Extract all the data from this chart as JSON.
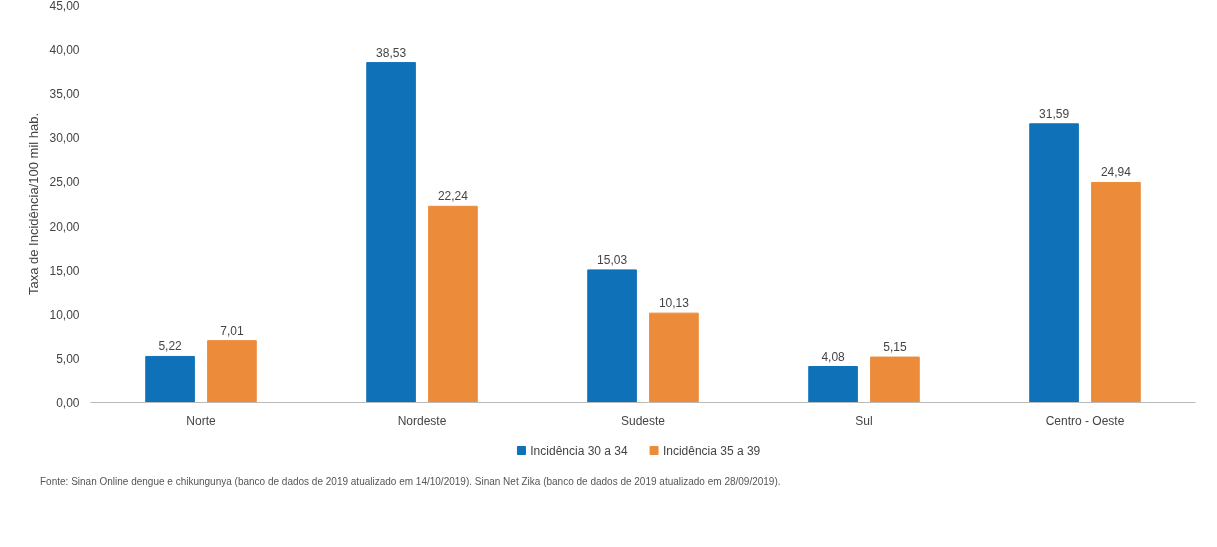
{
  "chart_data": {
    "type": "bar",
    "ylabel": "Taxa de Incidência/100 mil hab.",
    "categories": [
      "Norte",
      "Nordeste",
      "Sudeste",
      "Sul",
      "Centro - Oeste"
    ],
    "series": [
      {
        "name": "Incidência 30 a 34",
        "color": "#0f72b8",
        "values": [
          5.22,
          38.53,
          15.03,
          4.08,
          31.59
        ],
        "value_labels": [
          "5,22",
          "38,53",
          "15,03",
          "4,08",
          "31,59"
        ]
      },
      {
        "name": "Incidência 35 a 39",
        "color": "#ec8b3a",
        "values": [
          7.01,
          22.24,
          10.13,
          5.15,
          24.94
        ],
        "value_labels": [
          "7,01",
          "22,24",
          "10,13",
          "5,15",
          "24,94"
        ]
      }
    ],
    "ylim": [
      0,
      45
    ],
    "yticks": [
      {
        "value": 0,
        "label": "0,00"
      },
      {
        "value": 5,
        "label": "5,00"
      },
      {
        "value": 10,
        "label": "10,00"
      },
      {
        "value": 15,
        "label": "15,00"
      },
      {
        "value": 20,
        "label": "20,00"
      },
      {
        "value": 25,
        "label": "25,00"
      },
      {
        "value": 30,
        "label": "30,00"
      },
      {
        "value": 35,
        "label": "35,00"
      },
      {
        "value": 40,
        "label": "40,00"
      },
      {
        "value": 45,
        "label": "45,00"
      }
    ],
    "grid": false,
    "legend": "bottom",
    "annotations": [
      "Fonte: Sinan Online dengue e chikungunya (banco de dados de 2019 atualizado em 14/10/2019). Sinan Net Zika (banco de dados de 2019 atualizado em 28/09/2019)."
    ]
  }
}
